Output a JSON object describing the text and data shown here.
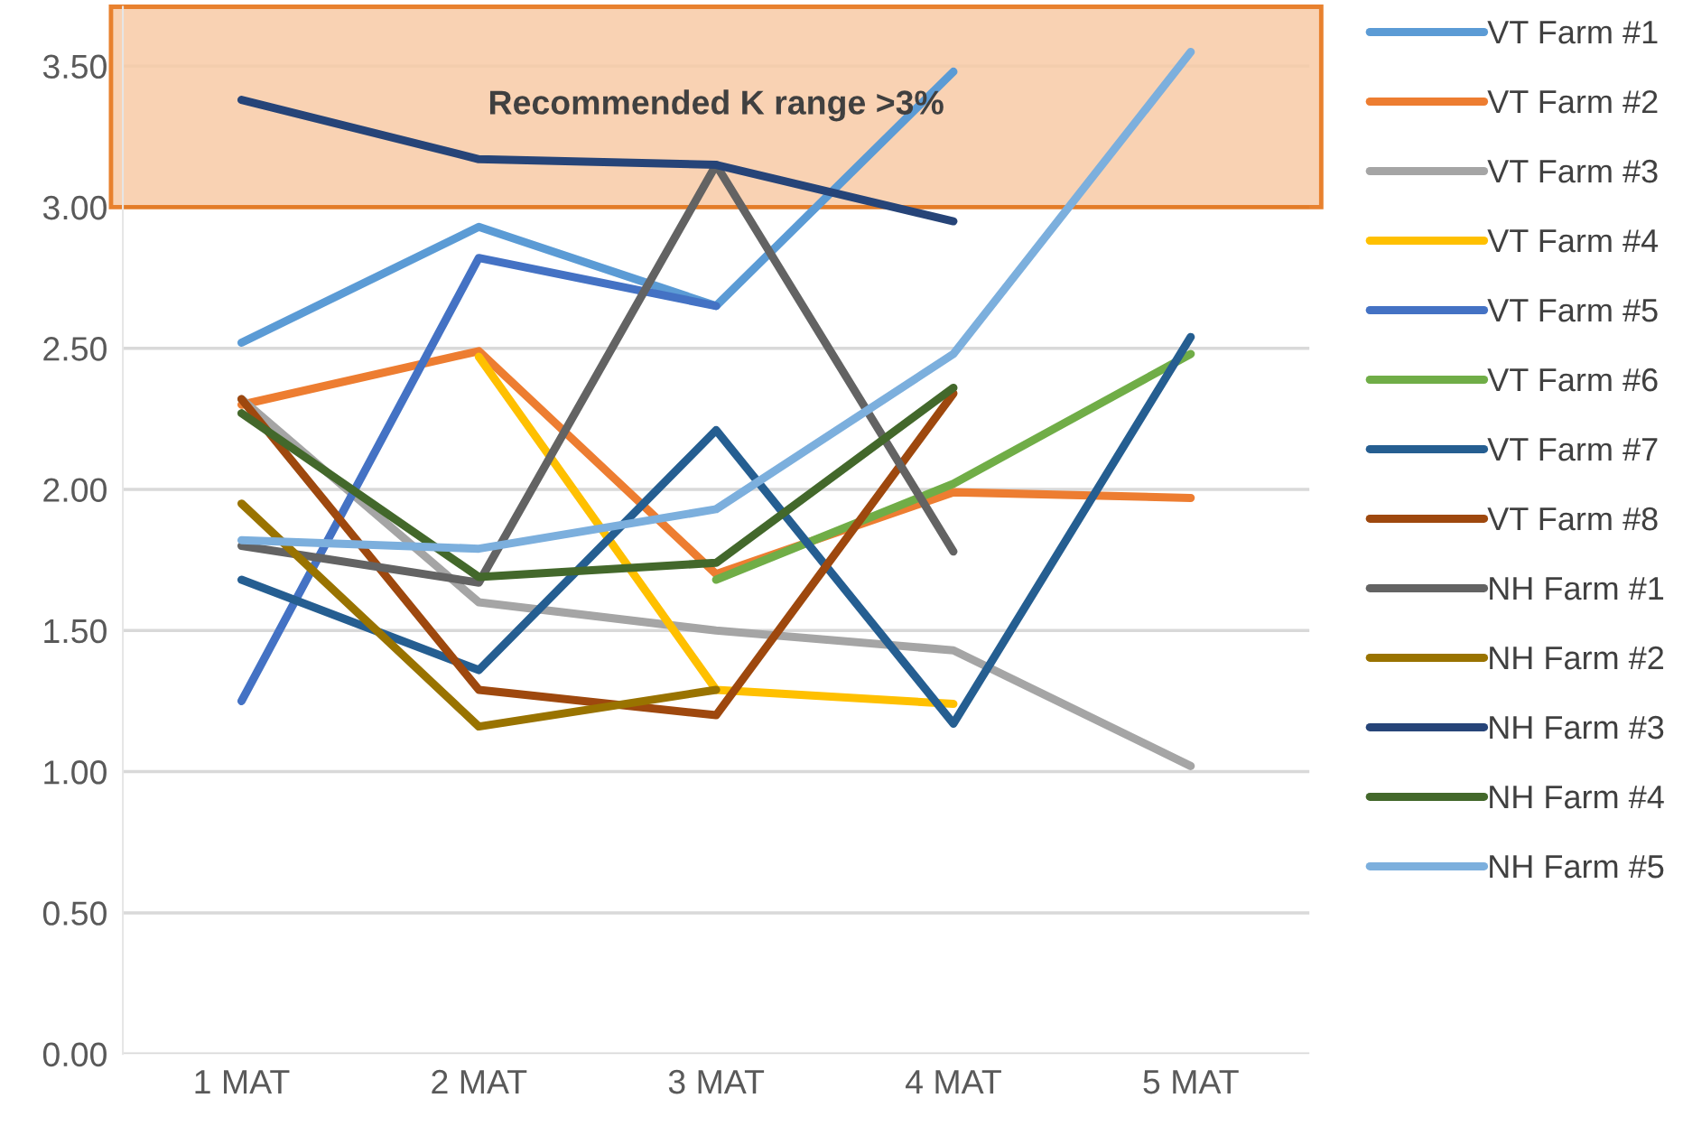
{
  "chart_data": {
    "type": "line",
    "categories": [
      "1 MAT",
      "2 MAT",
      "3 MAT",
      "4 MAT",
      "5 MAT"
    ],
    "series": [
      {
        "name": "VT Farm #1",
        "color": "#5b9bd5",
        "values": [
          2.52,
          2.93,
          2.65,
          3.48,
          null
        ]
      },
      {
        "name": "VT Farm #2",
        "color": "#ed7d31",
        "values": [
          2.3,
          2.49,
          1.7,
          1.99,
          1.97
        ]
      },
      {
        "name": "VT Farm #3",
        "color": "#a5a5a5",
        "values": [
          2.32,
          1.6,
          1.5,
          1.43,
          1.02
        ]
      },
      {
        "name": "VT Farm #4",
        "color": "#ffc000",
        "values": [
          null,
          2.47,
          1.29,
          1.24,
          null
        ]
      },
      {
        "name": "VT Farm #5",
        "color": "#4472c4",
        "values": [
          1.25,
          2.82,
          2.65,
          null,
          null
        ]
      },
      {
        "name": "VT Farm #6",
        "color": "#70ad47",
        "values": [
          null,
          null,
          1.68,
          2.02,
          2.48
        ]
      },
      {
        "name": "VT Farm #7",
        "color": "#255e91",
        "values": [
          1.68,
          1.36,
          2.21,
          1.17,
          2.54
        ]
      },
      {
        "name": "VT Farm #8",
        "color": "#9e480e",
        "values": [
          2.32,
          1.29,
          1.2,
          2.34,
          null
        ]
      },
      {
        "name": "NH Farm #1",
        "color": "#636363",
        "values": [
          1.8,
          1.67,
          3.15,
          1.78,
          null
        ]
      },
      {
        "name": "NH Farm #2",
        "color": "#997300",
        "values": [
          1.95,
          1.16,
          1.29,
          null,
          null
        ]
      },
      {
        "name": "NH Farm #3",
        "color": "#264478",
        "values": [
          3.38,
          3.17,
          3.15,
          2.95,
          null
        ]
      },
      {
        "name": "NH Farm #4",
        "color": "#43682b",
        "values": [
          2.27,
          1.69,
          1.74,
          2.36,
          null
        ]
      },
      {
        "name": "NH Farm #5",
        "color": "#7cafdd",
        "values": [
          1.82,
          1.79,
          1.93,
          2.48,
          3.55
        ]
      }
    ],
    "ylim": [
      0,
      3.71
    ],
    "yticks": [
      {
        "value": 0,
        "label": "0.00"
      },
      {
        "value": 0.5,
        "label": "0.50"
      },
      {
        "value": 1,
        "label": "1.00"
      },
      {
        "value": 1.5,
        "label": "1.50"
      },
      {
        "value": 2,
        "label": "2.00"
      },
      {
        "value": 2.5,
        "label": "2.50"
      },
      {
        "value": 3,
        "label": "3.00"
      },
      {
        "value": 3.5,
        "label": "3.50"
      }
    ],
    "bands": [
      {
        "axis": "y",
        "from": 3,
        "to": 3.71,
        "label": "Recommended K range >3%",
        "color": "#f8cba6"
      }
    ],
    "grid": "y",
    "legend": "right",
    "marker": "none",
    "line_style": "solid"
  }
}
